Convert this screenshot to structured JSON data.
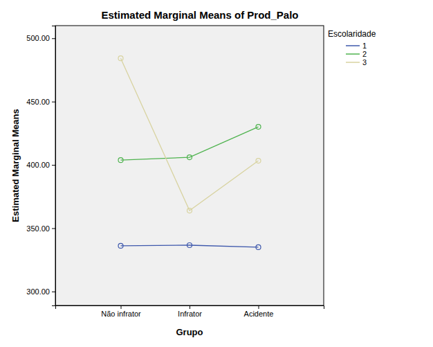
{
  "chart_data": {
    "type": "line",
    "title": "Estimated Marginal Means of Prod_Palo",
    "x_label": "Grupo",
    "y_label": "Estimated Marginal Means",
    "legend_title": "Escolaridade",
    "categories": [
      "Não infrator",
      "Infrator",
      "Acidente"
    ],
    "series": [
      {
        "name": "1",
        "color": "#3e58ac",
        "values": [
          336.1,
          336.6,
          335.0
        ]
      },
      {
        "name": "2",
        "color": "#4fb34f",
        "values": [
          403.8,
          406.0,
          430.1
        ]
      },
      {
        "name": "3",
        "color": "#d8d3a0",
        "values": [
          484.2,
          363.9,
          403.3
        ]
      }
    ],
    "ylim": [
      289,
      510
    ],
    "yticks": [
      {
        "value": 300,
        "label": "300.00"
      },
      {
        "value": 350,
        "label": "350.00"
      },
      {
        "value": 400,
        "label": "400.00"
      },
      {
        "value": 450,
        "label": "450.00"
      },
      {
        "value": 500,
        "label": "500.00"
      }
    ],
    "grid": false,
    "legend": "right",
    "marker": "circle"
  }
}
